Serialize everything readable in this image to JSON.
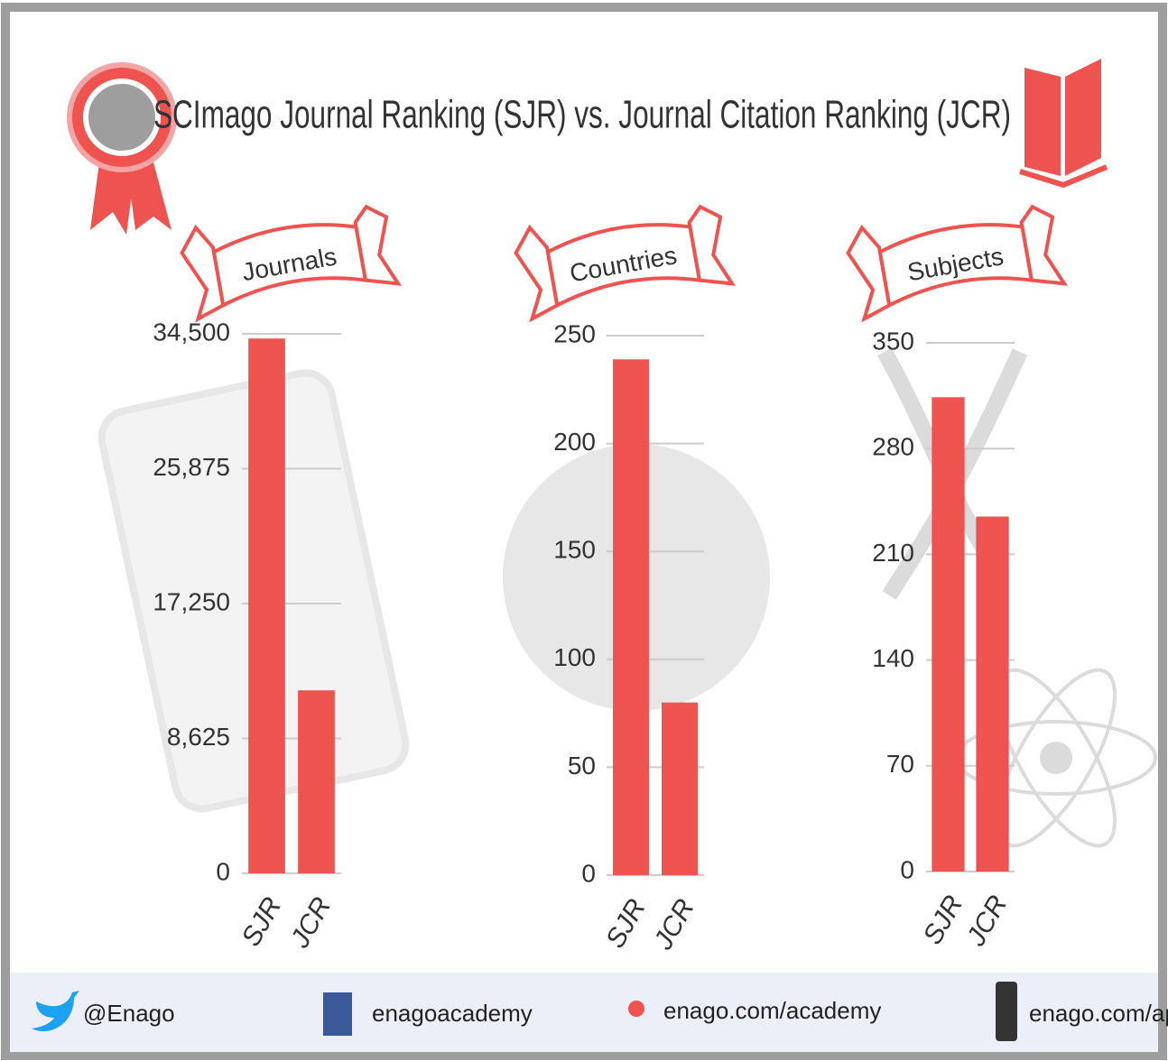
{
  "title": "SCImago Journal Ranking (SJR) vs. Journal Citation Ranking (JCR)",
  "chart_data": [
    {
      "type": "bar",
      "title": "Journals",
      "categories": [
        "SJR",
        "JCR"
      ],
      "values": [
        34200,
        11700
      ],
      "color": "#ef5350",
      "ylim": [
        0,
        34500
      ],
      "yticks": [
        0,
        {
          "value": 8625,
          "label": "8,625"
        },
        {
          "value": 17250,
          "label": "17,250"
        },
        {
          "value": 25875,
          "label": "25,875"
        },
        {
          "value": 34500,
          "label": "34,500"
        }
      ],
      "grid": true
    },
    {
      "type": "bar",
      "title": "Countries",
      "categories": [
        "SJR",
        "JCR"
      ],
      "values": [
        239,
        80
      ],
      "color": "#ef5350",
      "ylim": [
        0,
        250
      ],
      "yticks": [
        0,
        50,
        100,
        150,
        200,
        250
      ],
      "grid": true
    },
    {
      "type": "bar",
      "title": "Subjects",
      "categories": [
        "SJR",
        "JCR"
      ],
      "values": [
        314,
        235
      ],
      "color": "#ef5350",
      "ylim": [
        0,
        350
      ],
      "yticks": [
        0,
        70,
        140,
        210,
        280,
        350
      ],
      "grid": true
    }
  ],
  "footer": [
    "@Enago",
    "enagoacademy",
    "enago.com/academy",
    "enago.com/app"
  ]
}
